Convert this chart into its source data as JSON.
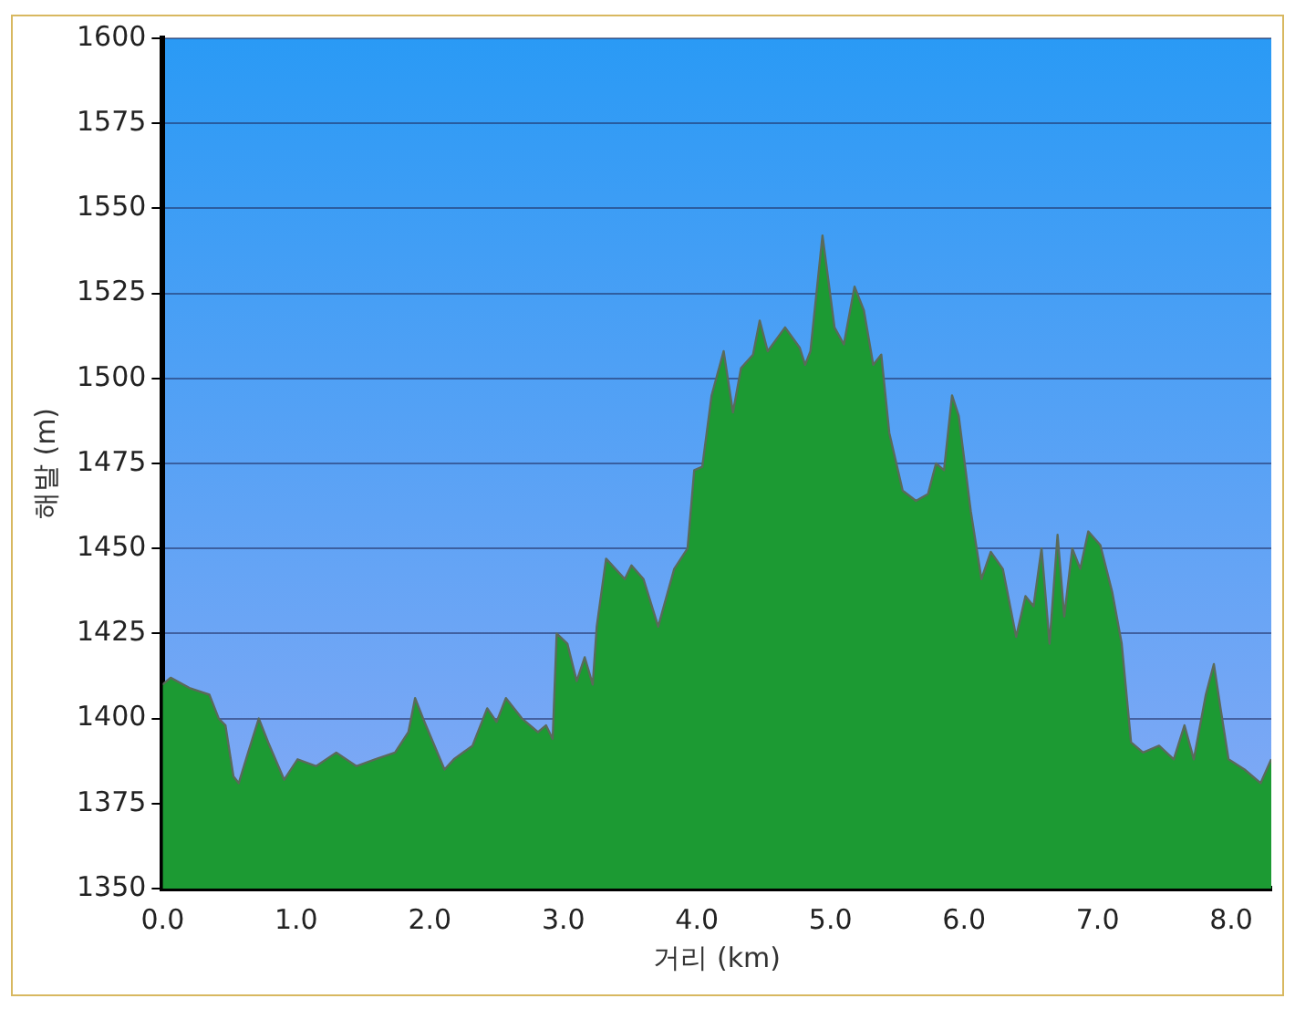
{
  "chart_data": {
    "type": "area",
    "xlabel": "거리 (km)",
    "ylabel": "해발 (m)",
    "x": [
      0,
      0.06,
      0.2,
      0.35,
      0.42,
      0.47,
      0.53,
      0.57,
      0.64,
      0.72,
      0.79,
      0.91,
      1.01,
      1.15,
      1.3,
      1.45,
      1.59,
      1.74,
      1.84,
      1.89,
      1.96,
      2.11,
      2.18,
      2.32,
      2.43,
      2.5,
      2.57,
      2.69,
      2.81,
      2.87,
      2.92,
      2.95,
      3.03,
      3.1,
      3.16,
      3.22,
      3.25,
      3.32,
      3.39,
      3.46,
      3.51,
      3.6,
      3.71,
      3.83,
      3.93,
      3.98,
      4.04,
      4.11,
      4.2,
      4.27,
      4.33,
      4.42,
      4.47,
      4.53,
      4.66,
      4.77,
      4.81,
      4.85,
      4.94,
      5.03,
      5.1,
      5.18,
      5.25,
      5.32,
      5.38,
      5.44,
      5.54,
      5.64,
      5.73,
      5.79,
      5.85,
      5.91,
      5.96,
      6.05,
      6.13,
      6.2,
      6.29,
      6.39,
      6.46,
      6.52,
      6.58,
      6.64,
      6.7,
      6.75,
      6.81,
      6.87,
      6.93,
      7.02,
      7.11,
      7.18,
      7.25,
      7.34,
      7.46,
      7.57,
      7.65,
      7.72,
      7.81,
      7.87,
      7.92,
      7.98,
      8.1,
      8.22,
      8.3
    ],
    "series": [
      {
        "color": "#1c9a33",
        "values": [
          1410,
          1412,
          1409,
          1407,
          1400,
          1398,
          1383,
          1381,
          1390,
          1400,
          1393,
          1382,
          1388,
          1386,
          1390,
          1386,
          1388,
          1390,
          1396,
          1406,
          1399,
          1385,
          1388,
          1392,
          1403,
          1399,
          1406,
          1400,
          1396,
          1398,
          1394,
          1425,
          1422,
          1411,
          1418,
          1410,
          1427,
          1447,
          1444,
          1441,
          1445,
          1441,
          1427,
          1444,
          1450,
          1473,
          1474,
          1495,
          1508,
          1490,
          1503,
          1507,
          1517,
          1508,
          1515,
          1509,
          1504,
          1508,
          1542,
          1515,
          1510,
          1527,
          1520,
          1504,
          1507,
          1484,
          1467,
          1464,
          1466,
          1475,
          1473,
          1495,
          1489,
          1461,
          1441,
          1449,
          1444,
          1424,
          1436,
          1433,
          1450,
          1422,
          1454,
          1430,
          1450,
          1444,
          1455,
          1451,
          1437,
          1422,
          1393,
          1390,
          1392,
          1388,
          1398,
          1388,
          1407,
          1416,
          1403,
          1388,
          1385,
          1381,
          1388
        ]
      }
    ],
    "xlim": [
      0,
      8.3
    ],
    "xticks": [
      {
        "value": 0,
        "label": "0.0"
      },
      {
        "value": 1,
        "label": "1.0"
      },
      {
        "value": 2,
        "label": "2.0"
      },
      {
        "value": 3,
        "label": "3.0"
      },
      {
        "value": 4,
        "label": "4.0"
      },
      {
        "value": 5,
        "label": "5.0"
      },
      {
        "value": 6,
        "label": "6.0"
      },
      {
        "value": 7,
        "label": "7.0"
      },
      {
        "value": 8,
        "label": "8.0"
      }
    ],
    "ylim": [
      1350,
      1600
    ],
    "yticks": [
      1350,
      1375,
      1400,
      1425,
      1450,
      1475,
      1500,
      1525,
      1550,
      1575,
      1600
    ],
    "grid": "y",
    "legend": false,
    "marker": "none",
    "line_style": "solid"
  }
}
